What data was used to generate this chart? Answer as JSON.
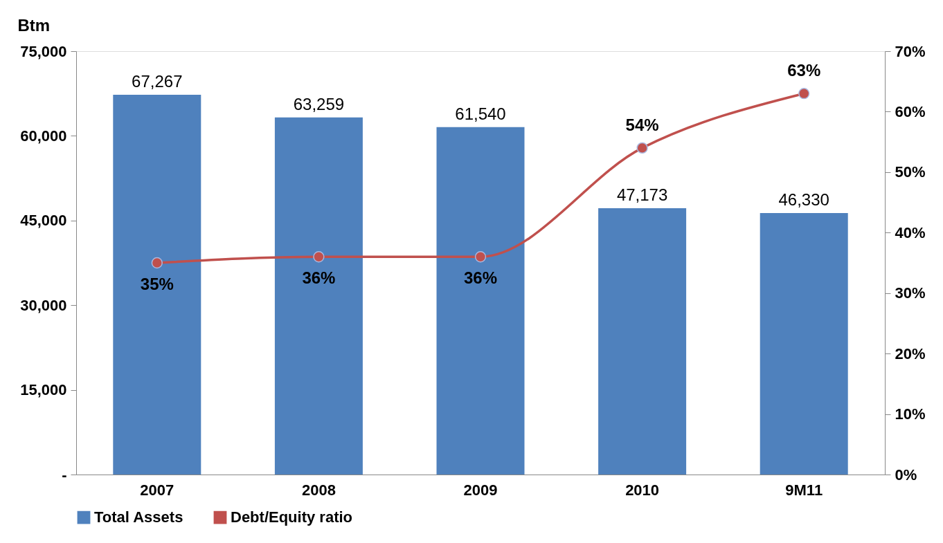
{
  "chart_data": {
    "type": "bar",
    "ylabel": "Btm",
    "categories": [
      "2007",
      "2008",
      "2009",
      "2010",
      "9M11"
    ],
    "series": [
      {
        "name": "Total Assets",
        "color": "#4f81bd",
        "values": [
          67267,
          63259,
          61540,
          47173,
          46330
        ],
        "value_labels": [
          "67,267",
          "63,259",
          "61,540",
          "47,173",
          "46,330"
        ]
      },
      {
        "name": "Debt/Equity ratio",
        "type": "line",
        "axis": "y2",
        "color": "#c0504d",
        "values": [
          35,
          36,
          36,
          54,
          63
        ],
        "value_labels": [
          "35%",
          "36%",
          "36%",
          "54%",
          "63%"
        ]
      }
    ],
    "ylim": [
      0,
      75000
    ],
    "yticks": [
      {
        "value": 0,
        "label": "-"
      },
      {
        "value": 15000,
        "label": "15,000"
      },
      {
        "value": 30000,
        "label": "30,000"
      },
      {
        "value": 45000,
        "label": "45,000"
      },
      {
        "value": 60000,
        "label": "60,000"
      },
      {
        "value": 75000,
        "label": "75,000"
      }
    ],
    "y2lim": [
      0,
      70
    ],
    "y2ticks": [
      {
        "value": 0,
        "label": "0%"
      },
      {
        "value": 10,
        "label": "10%"
      },
      {
        "value": 20,
        "label": "20%"
      },
      {
        "value": 30,
        "label": "30%"
      },
      {
        "value": 40,
        "label": "40%"
      },
      {
        "value": 50,
        "label": "50%"
      },
      {
        "value": 60,
        "label": "60%"
      },
      {
        "value": 70,
        "label": "70%"
      }
    ],
    "legend": "bottom",
    "marker": "circle",
    "grid": false
  }
}
